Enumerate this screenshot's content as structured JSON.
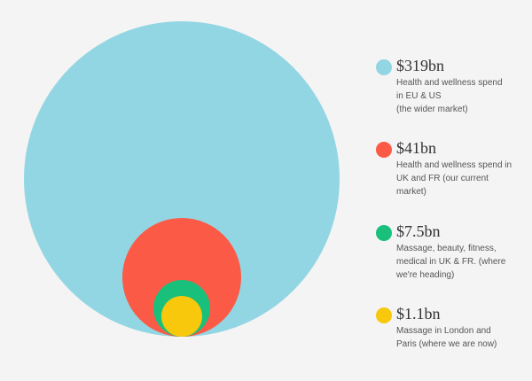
{
  "circles": [
    {
      "id": "eu-us",
      "value": "$319bn",
      "color": "#93d6e3",
      "description": "Health and wellness spend in EU & US (the wider market)"
    },
    {
      "id": "uk-fr",
      "value": "$41bn",
      "color": "#fb5a46",
      "description": "Health and wellness spend in UK and FR (our current market)"
    },
    {
      "id": "beauty",
      "value": "$7.5bn",
      "color": "#19c07b",
      "description": "Massage, beauty, fitness, medical in UK & FR. (where we're heading)"
    },
    {
      "id": "london-paris",
      "value": "$1.1bn",
      "color": "#f8c80c",
      "description": "Massage in London and Paris (where we are now)"
    }
  ],
  "legend": [
    {
      "value": "$319bn",
      "lines": [
        "Health and wellness spend",
        "in EU & US",
        "(the wider market)"
      ]
    },
    {
      "value": "$41bn",
      "lines": [
        "Health and wellness spend in",
        "UK and FR (our current",
        "market)"
      ]
    },
    {
      "value": "$7.5bn",
      "lines": [
        "Massage, beauty, fitness,",
        "medical in UK & FR. (where",
        "we're heading)"
      ]
    },
    {
      "value": "$1.1bn",
      "lines": [
        "Massage in London and",
        "Paris (where we are now)"
      ]
    }
  ]
}
